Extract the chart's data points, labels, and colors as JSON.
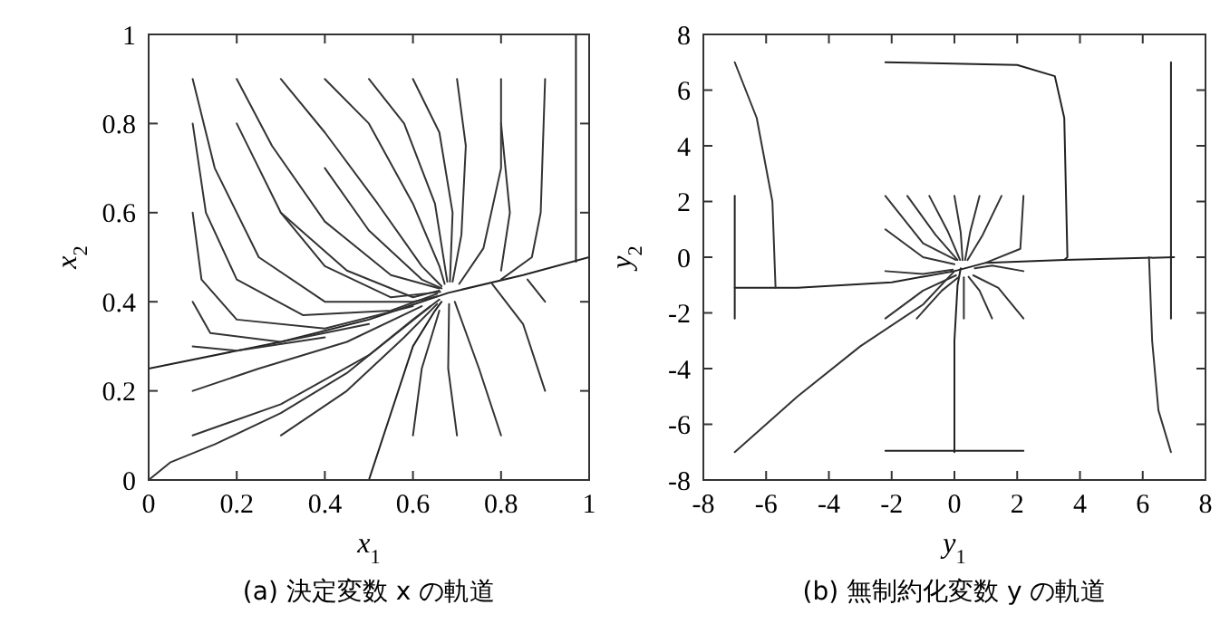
{
  "chart_data": [
    {
      "type": "line",
      "title": "(a) 決定変数 x の軌道",
      "xlabel": "x$_{1}$",
      "ylabel": "x$_{2}$",
      "xlim": [
        0,
        1
      ],
      "ylim": [
        0,
        1
      ],
      "xticks": [
        0,
        0.2,
        0.4,
        0.6,
        0.8,
        1
      ],
      "yticks": [
        0,
        0.2,
        0.4,
        0.6,
        0.8,
        1
      ],
      "grid": false,
      "line_style": "solid",
      "series": [
        {
          "color": "#222222",
          "x": [
            0,
            0.3,
            0.5,
            0.68,
            0.85,
            1
          ],
          "values": [
            0.25,
            0.31,
            0.36,
            0.42,
            0.46,
            0.5
          ]
        },
        {
          "color": "#222222",
          "x": [
            0.97,
            0.97
          ],
          "values": [
            1,
            0.49
          ]
        },
        {
          "color": "#333333",
          "x": [
            0,
            0.05,
            0.15,
            0.3,
            0.45,
            0.6,
            0.66
          ],
          "values": [
            0,
            0.04,
            0.08,
            0.15,
            0.24,
            0.36,
            0.405
          ]
        },
        {
          "color": "#222222",
          "x": [
            0.5,
            0.55,
            0.6,
            0.65,
            0.665
          ],
          "values": [
            0,
            0.15,
            0.3,
            0.38,
            0.4
          ]
        },
        {
          "color": "#333333",
          "x": [
            0.1,
            0.15,
            0.25,
            0.4,
            0.6,
            0.655
          ],
          "values": [
            0.9,
            0.7,
            0.5,
            0.4,
            0.4,
            0.412
          ]
        },
        {
          "color": "#333333",
          "x": [
            0.2,
            0.28,
            0.4,
            0.55,
            0.66
          ],
          "values": [
            0.9,
            0.75,
            0.58,
            0.46,
            0.43
          ]
        },
        {
          "color": "#333333",
          "x": [
            0.3,
            0.4,
            0.52,
            0.62,
            0.665
          ],
          "values": [
            0.9,
            0.78,
            0.62,
            0.48,
            0.435
          ]
        },
        {
          "color": "#333333",
          "x": [
            0.4,
            0.5,
            0.6,
            0.66,
            0.672
          ],
          "values": [
            0.9,
            0.8,
            0.62,
            0.48,
            0.44
          ]
        },
        {
          "color": "#333333",
          "x": [
            0.5,
            0.58,
            0.65,
            0.678
          ],
          "values": [
            0.9,
            0.8,
            0.62,
            0.445
          ]
        },
        {
          "color": "#333333",
          "x": [
            0.6,
            0.66,
            0.69,
            0.684
          ],
          "values": [
            0.9,
            0.78,
            0.6,
            0.445
          ]
        },
        {
          "color": "#333333",
          "x": [
            0.7,
            0.72,
            0.71,
            0.69
          ],
          "values": [
            0.9,
            0.75,
            0.55,
            0.445
          ]
        },
        {
          "color": "#333333",
          "x": [
            0.8,
            0.8,
            0.76,
            0.705
          ],
          "values": [
            0.9,
            0.7,
            0.52,
            0.44
          ]
        },
        {
          "color": "#333333",
          "x": [
            0.9,
            0.89,
            0.87,
            0.8
          ],
          "values": [
            0.9,
            0.6,
            0.5,
            0.45
          ]
        },
        {
          "color": "#333333",
          "x": [
            0.1,
            0.13,
            0.2,
            0.35,
            0.55,
            0.655
          ],
          "values": [
            0.8,
            0.6,
            0.45,
            0.37,
            0.38,
            0.418
          ]
        },
        {
          "color": "#333333",
          "x": [
            0.1,
            0.12,
            0.2,
            0.4,
            0.6
          ],
          "values": [
            0.6,
            0.45,
            0.36,
            0.34,
            0.39
          ]
        },
        {
          "color": "#333333",
          "x": [
            0.1,
            0.14,
            0.3,
            0.5
          ],
          "values": [
            0.4,
            0.33,
            0.31,
            0.35
          ]
        },
        {
          "color": "#333333",
          "x": [
            0.1,
            0.2,
            0.4
          ],
          "values": [
            0.3,
            0.29,
            0.32
          ]
        },
        {
          "color": "#333333",
          "x": [
            0.1,
            0.25,
            0.45,
            0.62
          ],
          "values": [
            0.2,
            0.25,
            0.31,
            0.39
          ]
        },
        {
          "color": "#333333",
          "x": [
            0.1,
            0.3,
            0.5,
            0.64
          ],
          "values": [
            0.1,
            0.17,
            0.28,
            0.39
          ]
        },
        {
          "color": "#333333",
          "x": [
            0.3,
            0.45,
            0.58,
            0.655
          ],
          "values": [
            0.1,
            0.2,
            0.32,
            0.395
          ]
        },
        {
          "color": "#333333",
          "x": [
            0.6,
            0.62,
            0.66
          ],
          "values": [
            0.1,
            0.25,
            0.38
          ]
        },
        {
          "color": "#333333",
          "x": [
            0.7,
            0.68,
            0.682
          ],
          "values": [
            0.1,
            0.25,
            0.395
          ]
        },
        {
          "color": "#333333",
          "x": [
            0.8,
            0.75,
            0.695
          ],
          "values": [
            0.1,
            0.25,
            0.4
          ]
        },
        {
          "color": "#333333",
          "x": [
            0.9,
            0.85,
            0.78
          ],
          "values": [
            0.2,
            0.35,
            0.44
          ]
        },
        {
          "color": "#333333",
          "x": [
            0.9,
            0.86
          ],
          "values": [
            0.4,
            0.45
          ]
        },
        {
          "color": "#333333",
          "x": [
            0.2,
            0.3,
            0.45,
            0.6,
            0.66
          ],
          "values": [
            0.8,
            0.6,
            0.47,
            0.41,
            0.425
          ]
        },
        {
          "color": "#333333",
          "x": [
            0.3,
            0.4,
            0.55,
            0.662
          ],
          "values": [
            0.6,
            0.48,
            0.41,
            0.422
          ]
        },
        {
          "color": "#333333",
          "x": [
            0.4,
            0.5,
            0.62,
            0.665
          ],
          "values": [
            0.7,
            0.56,
            0.45,
            0.43
          ]
        },
        {
          "color": "#333333",
          "x": [
            0.8,
            0.82,
            0.8
          ],
          "values": [
            0.8,
            0.6,
            0.47
          ]
        }
      ]
    },
    {
      "type": "line",
      "title": "(b) 無制約化変数 y の軌道",
      "xlabel": "y$_{1}$",
      "ylabel": "y$_{2}$",
      "xlim": [
        -8,
        8
      ],
      "ylim": [
        -8,
        8
      ],
      "xticks": [
        -8,
        -6,
        -4,
        -2,
        0,
        2,
        4,
        6,
        8
      ],
      "yticks": [
        -8,
        -6,
        -4,
        -2,
        0,
        2,
        4,
        6,
        8
      ],
      "grid": false,
      "line_style": "solid",
      "series": [
        {
          "color": "#222222",
          "x": [
            -7,
            -5,
            -2,
            0,
            1,
            3.5,
            7
          ],
          "values": [
            -1.1,
            -1.1,
            -0.9,
            -0.5,
            -0.2,
            -0.1,
            0
          ]
        },
        {
          "color": "#222222",
          "x": [
            -7,
            -7
          ],
          "values": [
            2.2,
            -2.2
          ]
        },
        {
          "color": "#333333",
          "x": [
            -7,
            -6.3,
            -5.8,
            -5.7
          ],
          "values": [
            7,
            5,
            2,
            -1.1
          ]
        },
        {
          "color": "#222222",
          "x": [
            -2.2,
            2,
            3.2,
            3.5,
            3.6,
            3.5
          ],
          "values": [
            7,
            6.9,
            6.5,
            5,
            0,
            -0.1
          ]
        },
        {
          "color": "#222222",
          "x": [
            6.9,
            6.9
          ],
          "values": [
            7,
            -2.2
          ]
        },
        {
          "color": "#333333",
          "x": [
            6.2,
            6.3,
            6.5,
            6.9
          ],
          "values": [
            0,
            -3,
            -5.5,
            -7
          ]
        },
        {
          "color": "#333333",
          "x": [
            -7,
            -5,
            -3,
            -1,
            0
          ],
          "values": [
            -7,
            -5,
            -3.2,
            -1.7,
            -0.5
          ]
        },
        {
          "color": "#222222",
          "x": [
            0,
            0,
            0.1,
            0.2
          ],
          "values": [
            -7,
            -3,
            -1,
            -0.4
          ]
        },
        {
          "color": "#222222",
          "x": [
            -2.2,
            2.2
          ],
          "values": [
            -6.95,
            -6.95
          ]
        },
        {
          "color": "#333333",
          "x": [
            -2.2,
            -1,
            0.05
          ],
          "values": [
            2.2,
            0.5,
            -0.1
          ]
        },
        {
          "color": "#333333",
          "x": [
            -1.5,
            -0.6,
            0.1
          ],
          "values": [
            2.2,
            0.8,
            -0.1
          ]
        },
        {
          "color": "#333333",
          "x": [
            -0.8,
            -0.2,
            0.18
          ],
          "values": [
            2.2,
            0.9,
            -0.1
          ]
        },
        {
          "color": "#333333",
          "x": [
            0,
            0.2,
            0.26
          ],
          "values": [
            2.2,
            0.9,
            -0.1
          ]
        },
        {
          "color": "#333333",
          "x": [
            0.8,
            0.5,
            0.34
          ],
          "values": [
            2.2,
            0.9,
            -0.1
          ]
        },
        {
          "color": "#333333",
          "x": [
            1.5,
            0.9,
            0.42
          ],
          "values": [
            2.2,
            0.8,
            -0.1
          ]
        },
        {
          "color": "#333333",
          "x": [
            2.2,
            2.1,
            1
          ],
          "values": [
            2.2,
            0.3,
            -0.2
          ]
        },
        {
          "color": "#333333",
          "x": [
            -2.2,
            -1,
            0
          ],
          "values": [
            1,
            0,
            -0.25
          ]
        },
        {
          "color": "#333333",
          "x": [
            -2.2,
            -1,
            -0.05
          ],
          "values": [
            -0.5,
            -0.6,
            -0.45
          ]
        },
        {
          "color": "#333333",
          "x": [
            -2.2,
            -1,
            0.05
          ],
          "values": [
            -2.2,
            -1.2,
            -0.65
          ]
        },
        {
          "color": "#333333",
          "x": [
            -1.2,
            -0.4,
            0.15
          ],
          "values": [
            -2.2,
            -1.2,
            -0.7
          ]
        },
        {
          "color": "#333333",
          "x": [
            0.3,
            0.3,
            0.3
          ],
          "values": [
            -2.2,
            -1.2,
            -0.72
          ]
        },
        {
          "color": "#333333",
          "x": [
            1.2,
            0.8,
            0.45
          ],
          "values": [
            -2.2,
            -1.2,
            -0.7
          ]
        },
        {
          "color": "#333333",
          "x": [
            2.2,
            1.4,
            0.6
          ],
          "values": [
            -2.2,
            -1.1,
            -0.65
          ]
        },
        {
          "color": "#333333",
          "x": [
            2.2,
            1.2,
            0.65
          ],
          "values": [
            -0.5,
            -0.3,
            -0.4
          ]
        }
      ]
    }
  ]
}
